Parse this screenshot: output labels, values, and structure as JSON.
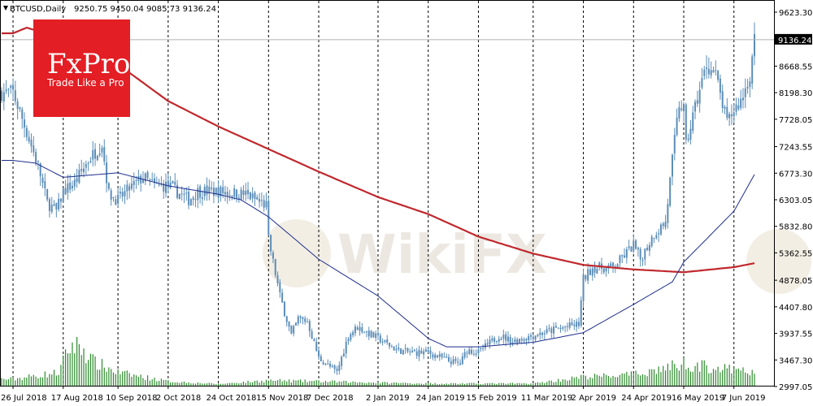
{
  "header": {
    "symbol": "BTCUSD,Daily",
    "ohlc": "9250.75 9450.04 9085.73 9136.24"
  },
  "current_price_label": "9136.24",
  "logo": {
    "brand": "FxPro",
    "tagline": "Trade Like a Pro",
    "color": "#e31e24"
  },
  "watermark": {
    "text": "WikiFX"
  },
  "colors": {
    "candle": "#5b8db8",
    "ma_slow": "#c0282d",
    "ma_fast": "#1c2c8c",
    "volume": "#2c8a2c",
    "price_line": "#b0b0b0",
    "grid": "#000000"
  },
  "chart_data": {
    "type": "candlestick",
    "title": "BTCUSD,Daily",
    "y_ticks": [
      "9623.30",
      "9136.24",
      "8668.55",
      "8198.30",
      "7728.05",
      "7243.55",
      "6773.30",
      "6303.05",
      "5832.80",
      "5362.55",
      "4878.05",
      "4407.80",
      "3937.55",
      "3467.30",
      "2997.05"
    ],
    "y_range": [
      2997.05,
      9623.3
    ],
    "x_ticks": [
      "26 Jul 2018",
      "17 Aug 2018",
      "10 Sep 2018",
      "2 Oct 2018",
      "24 Oct 2018",
      "15 Nov 2018",
      "7 Dec 2018",
      "2 Jan 2019",
      "24 Jan 2019",
      "15 Feb 2019",
      "11 Mar 2019",
      "2 Apr 2019",
      "24 Apr 2019",
      "16 May 2019",
      "7 Jun 2019"
    ],
    "price_anchors": [
      [
        "26 Jul 2018",
        8200
      ],
      [
        "1 Aug 2018",
        7500
      ],
      [
        "6 Aug 2018",
        6900
      ],
      [
        "10 Aug 2018",
        6250
      ],
      [
        "14 Aug 2018",
        6100
      ],
      [
        "17 Aug 2018",
        6450
      ],
      [
        "22 Aug 2018",
        6600
      ],
      [
        "28 Aug 2018",
        7000
      ],
      [
        "3 Sep 2018",
        7300
      ],
      [
        "6 Sep 2018",
        6400
      ],
      [
        "10 Sep 2018",
        6300
      ],
      [
        "15 Sep 2018",
        6500
      ],
      [
        "21 Sep 2018",
        6700
      ],
      [
        "26 Sep 2018",
        6550
      ],
      [
        "2 Oct 2018",
        6550
      ],
      [
        "11 Oct 2018",
        6300
      ],
      [
        "15 Oct 2018",
        6450
      ],
      [
        "24 Oct 2018",
        6450
      ],
      [
        "5 Nov 2018",
        6400
      ],
      [
        "14 Nov 2018",
        6200
      ],
      [
        "15 Nov 2018",
        5600
      ],
      [
        "20 Nov 2018",
        4600
      ],
      [
        "25 Nov 2018",
        3900
      ],
      [
        "28 Nov 2018",
        4200
      ],
      [
        "2 Dec 2018",
        4150
      ],
      [
        "7 Dec 2018",
        3500
      ],
      [
        "15 Dec 2018",
        3250
      ],
      [
        "20 Dec 2018",
        3900
      ],
      [
        "24 Dec 2018",
        4050
      ],
      [
        "2 Jan 2019",
        3850
      ],
      [
        "10 Jan 2019",
        3650
      ],
      [
        "16 Jan 2019",
        3600
      ],
      [
        "24 Jan 2019",
        3600
      ],
      [
        "2 Feb 2019",
        3450
      ],
      [
        "7 Feb 2019",
        3400
      ],
      [
        "10 Feb 2019",
        3650
      ],
      [
        "15 Feb 2019",
        3600
      ],
      [
        "24 Feb 2019",
        3900
      ],
      [
        "2 Mar 2019",
        3800
      ],
      [
        "11 Mar 2019",
        3900
      ],
      [
        "20 Mar 2019",
        4000
      ],
      [
        "31 Mar 2019",
        4100
      ],
      [
        "2 Apr 2019",
        4900
      ],
      [
        "6 Apr 2019",
        5100
      ],
      [
        "15 Apr 2019",
        5100
      ],
      [
        "24 Apr 2019",
        5500
      ],
      [
        "27 Apr 2019",
        5250
      ],
      [
        "3 May 2019",
        5700
      ],
      [
        "8 May 2019",
        5900
      ],
      [
        "11 May 2019",
        7000
      ],
      [
        "14 May 2019",
        8000
      ],
      [
        "16 May 2019",
        7900
      ],
      [
        "17 May 2019",
        7250
      ],
      [
        "21 May 2019",
        7950
      ],
      [
        "26 May 2019",
        8700
      ],
      [
        "30 May 2019",
        8500
      ],
      [
        "4 Jun 2019",
        7650
      ],
      [
        "7 Jun 2019",
        7900
      ],
      [
        "10 Jun 2019",
        8050
      ],
      [
        "14 Jun 2019",
        8500
      ],
      [
        "16 Jun 2019",
        9136
      ]
    ],
    "ma_slow_anchors": [
      [
        "26 Jul 2018",
        9250
      ],
      [
        "1 Aug 2018",
        9350
      ],
      [
        "17 Aug 2018",
        9150
      ],
      [
        "10 Sep 2018",
        8700
      ],
      [
        "2 Oct 2018",
        8050
      ],
      [
        "24 Oct 2018",
        7600
      ],
      [
        "15 Nov 2018",
        7200
      ],
      [
        "7 Dec 2018",
        6800
      ],
      [
        "2 Jan 2019",
        6350
      ],
      [
        "24 Jan 2019",
        6050
      ],
      [
        "15 Feb 2019",
        5650
      ],
      [
        "11 Mar 2019",
        5350
      ],
      [
        "2 Apr 2019",
        5150
      ],
      [
        "24 Apr 2019",
        5070
      ],
      [
        "16 May 2019",
        5020
      ],
      [
        "7 Jun 2019",
        5110
      ],
      [
        "16 Jun 2019",
        5180
      ]
    ],
    "ma_fast_anchors": [
      [
        "26 Jul 2018",
        7000
      ],
      [
        "5 Aug 2018",
        6950
      ],
      [
        "17 Aug 2018",
        6700
      ],
      [
        "10 Sep 2018",
        6780
      ],
      [
        "2 Oct 2018",
        6550
      ],
      [
        "24 Oct 2018",
        6400
      ],
      [
        "3 Nov 2018",
        6300
      ],
      [
        "15 Nov 2018",
        6000
      ],
      [
        "7 Dec 2018",
        5250
      ],
      [
        "2 Jan 2019",
        4600
      ],
      [
        "24 Jan 2019",
        3850
      ],
      [
        "1 Feb 2019",
        3700
      ],
      [
        "15 Feb 2019",
        3700
      ],
      [
        "11 Mar 2019",
        3780
      ],
      [
        "2 Apr 2019",
        3950
      ],
      [
        "24 Apr 2019",
        4450
      ],
      [
        "11 May 2019",
        4850
      ],
      [
        "16 May 2019",
        5200
      ],
      [
        "7 Jun 2019",
        6100
      ],
      [
        "16 Jun 2019",
        6750
      ]
    ],
    "volume_anchors": [
      [
        "26 Jul 2018",
        0.15
      ],
      [
        "15 Aug 2018",
        0.3
      ],
      [
        "20 Aug 2018",
        0.9
      ],
      [
        "24 Aug 2018",
        0.95
      ],
      [
        "30 Aug 2018",
        0.55
      ],
      [
        "10 Sep 2018",
        0.3
      ],
      [
        "2 Oct 2018",
        0.1
      ],
      [
        "24 Oct 2018",
        0.04
      ],
      [
        "15 Nov 2018",
        0.12
      ],
      [
        "7 Dec 2018",
        0.1
      ],
      [
        "2 Jan 2019",
        0.07
      ],
      [
        "24 Jan 2019",
        0.05
      ],
      [
        "15 Feb 2019",
        0.05
      ],
      [
        "11 Mar 2019",
        0.05
      ],
      [
        "2 Apr 2019",
        0.2
      ],
      [
        "24 Apr 2019",
        0.25
      ],
      [
        "16 May 2019",
        0.5
      ],
      [
        "7 Jun 2019",
        0.35
      ],
      [
        "16 Jun 2019",
        0.3
      ]
    ],
    "date_range": [
      "21 Jul 2018",
      "16 Jun 2019"
    ]
  }
}
